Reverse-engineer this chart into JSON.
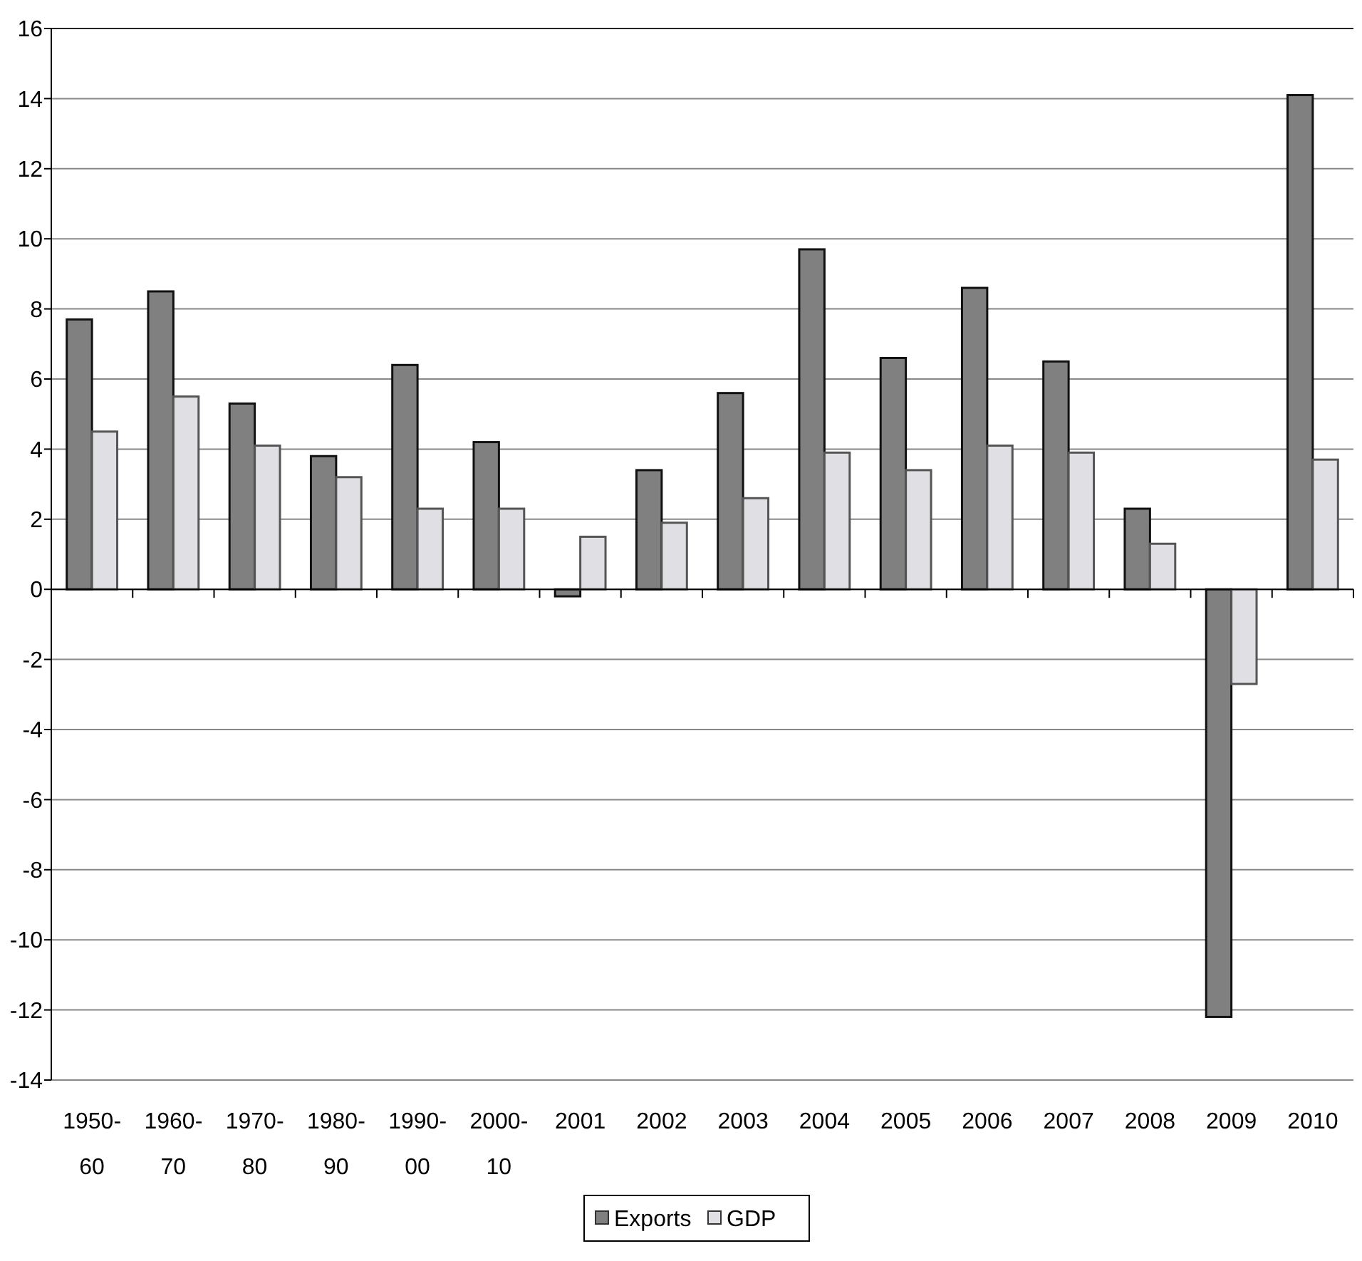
{
  "chart_data": {
    "type": "bar",
    "categories": [
      "1950-60",
      "1960-70",
      "1970-80",
      "1980-90",
      "1990-00",
      "2000-10",
      "2001",
      "2002",
      "2003",
      "2004",
      "2005",
      "2006",
      "2007",
      "2008",
      "2009",
      "2010"
    ],
    "series": [
      {
        "name": "Exports",
        "color": "#808080",
        "values": [
          7.7,
          8.5,
          5.3,
          3.8,
          6.4,
          4.2,
          -0.2,
          3.4,
          5.6,
          9.7,
          6.6,
          8.6,
          6.5,
          2.3,
          -12.2,
          14.1
        ]
      },
      {
        "name": "GDP",
        "color": "#e0e0e4",
        "values": [
          4.5,
          5.5,
          4.1,
          3.2,
          2.3,
          2.3,
          1.5,
          1.9,
          2.6,
          3.9,
          3.4,
          4.1,
          3.9,
          1.3,
          -2.7,
          3.7
        ]
      }
    ],
    "ylim": [
      -14,
      16
    ],
    "yticks": [
      -14,
      -12,
      -10,
      -8,
      -6,
      -4,
      -2,
      0,
      2,
      4,
      6,
      8,
      10,
      12,
      14,
      16
    ],
    "grid": "y",
    "legend": "bottom"
  }
}
